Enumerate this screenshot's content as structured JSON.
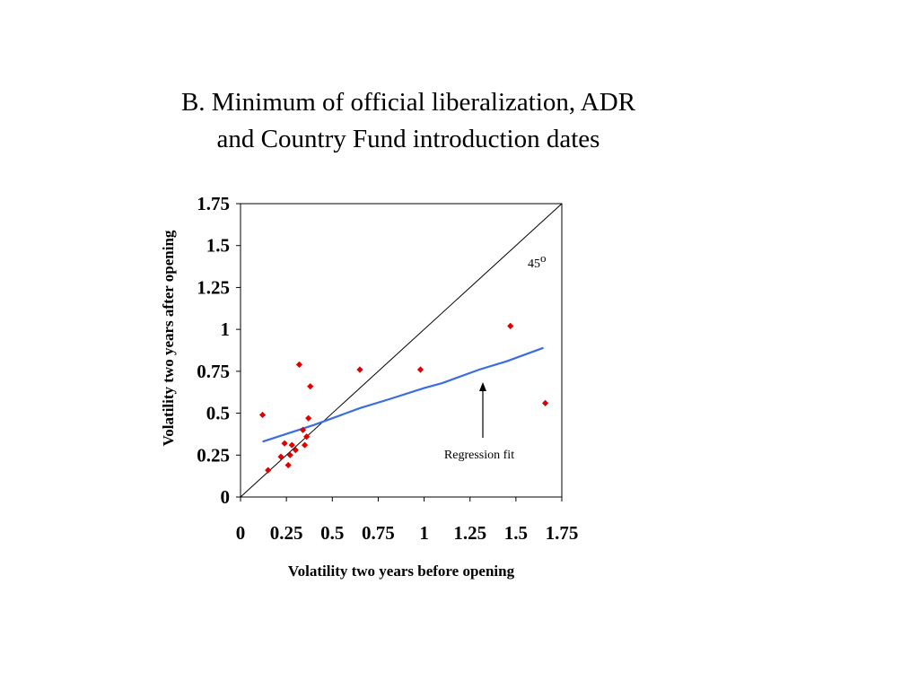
{
  "title_lines": [
    "B. Minimum of official liberalization, ADR",
    "and Country Fund introduction dates"
  ],
  "chart_data": {
    "type": "scatter",
    "xlabel": "Volatility two years before opening",
    "ylabel": "Volatility two years after opening",
    "xlim": [
      0,
      1.75
    ],
    "ylim": [
      0,
      1.75
    ],
    "xticks": [
      "0",
      "0.25",
      "0.5",
      "0.75",
      "1",
      "1.25",
      "1.5",
      "1.75"
    ],
    "yticks": [
      "0",
      "0.25",
      "0.5",
      "0.75",
      "1",
      "1.25",
      "1.5",
      "1.75"
    ],
    "grid": false,
    "points": [
      {
        "x": 0.12,
        "y": 0.49
      },
      {
        "x": 0.15,
        "y": 0.16
      },
      {
        "x": 0.22,
        "y": 0.24
      },
      {
        "x": 0.24,
        "y": 0.32
      },
      {
        "x": 0.26,
        "y": 0.19
      },
      {
        "x": 0.27,
        "y": 0.25
      },
      {
        "x": 0.28,
        "y": 0.31
      },
      {
        "x": 0.3,
        "y": 0.28
      },
      {
        "x": 0.32,
        "y": 0.79
      },
      {
        "x": 0.34,
        "y": 0.4
      },
      {
        "x": 0.35,
        "y": 0.31
      },
      {
        "x": 0.36,
        "y": 0.36
      },
      {
        "x": 0.37,
        "y": 0.47
      },
      {
        "x": 0.38,
        "y": 0.66
      },
      {
        "x": 0.65,
        "y": 0.76
      },
      {
        "x": 0.98,
        "y": 0.76
      },
      {
        "x": 1.47,
        "y": 1.02
      },
      {
        "x": 1.66,
        "y": 0.56
      }
    ],
    "regression_fit": [
      {
        "x": 0.12,
        "y": 0.33
      },
      {
        "x": 0.4,
        "y": 0.43
      },
      {
        "x": 0.65,
        "y": 0.53
      },
      {
        "x": 0.8,
        "y": 0.58
      },
      {
        "x": 1.0,
        "y": 0.65
      },
      {
        "x": 1.1,
        "y": 0.68
      },
      {
        "x": 1.3,
        "y": 0.76
      },
      {
        "x": 1.45,
        "y": 0.81
      },
      {
        "x": 1.65,
        "y": 0.89
      }
    ],
    "diagonal": [
      {
        "x": 0,
        "y": 0
      },
      {
        "x": 1.75,
        "y": 1.75
      }
    ],
    "annotations": {
      "angle_label": "45",
      "angle_sup": "o",
      "regression_label": "Regression fit"
    },
    "colors": {
      "points": "#e00000",
      "regression": "#3a6ee0",
      "diagonal": "#000000",
      "axes": "#000000"
    }
  }
}
